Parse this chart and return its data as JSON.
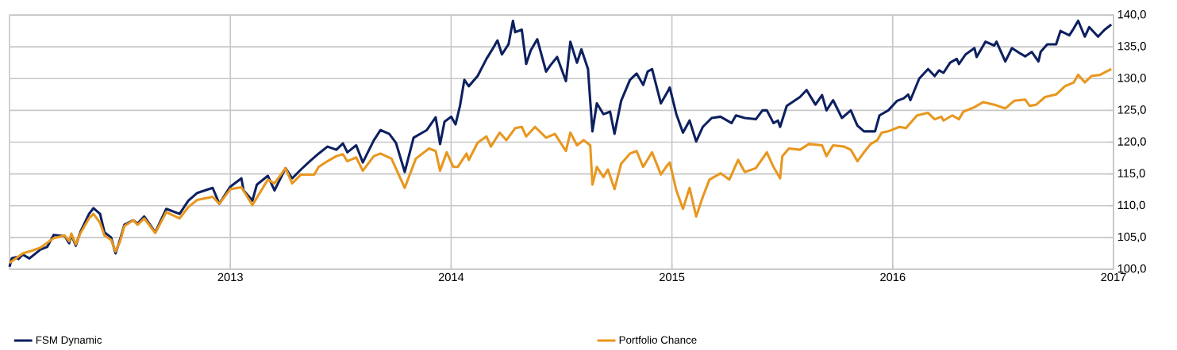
{
  "chart_data": {
    "type": "line",
    "xlim": [
      2012,
      2017
    ],
    "xticks": [
      2013,
      2014,
      2015,
      2016,
      2017
    ],
    "ylim": [
      100,
      140
    ],
    "yticks": [
      {
        "value": 100,
        "label": "100,0"
      },
      {
        "value": 105,
        "label": "105,0"
      },
      {
        "value": 110,
        "label": "110,0"
      },
      {
        "value": 115,
        "label": "115,0"
      },
      {
        "value": 120,
        "label": "120,0"
      },
      {
        "value": 125,
        "label": "125,0"
      },
      {
        "value": 130,
        "label": "130,0"
      },
      {
        "value": 135,
        "label": "135,0"
      },
      {
        "value": 140,
        "label": "140,0"
      }
    ],
    "grid": true,
    "legend": "bottom",
    "marker": "none",
    "line_style": "solid",
    "series": [
      {
        "name": "FSM Dynamic",
        "color": "#0d2060",
        "x": [
          2012.0,
          2012.01,
          2012.03,
          2012.04,
          2012.06,
          2012.09,
          2012.14,
          2012.17,
          2012.2,
          2012.25,
          2012.27,
          2012.28,
          2012.3,
          2012.32,
          2012.36,
          2012.38,
          2012.41,
          2012.43,
          2012.46,
          2012.48,
          2012.5,
          2012.52,
          2012.56,
          2012.58,
          2012.61,
          2012.66,
          2012.71,
          2012.77,
          2012.81,
          2012.85,
          2012.92,
          2012.95,
          2013.0,
          2013.05,
          2013.06,
          2013.1,
          2013.12,
          2013.17,
          2013.2,
          2013.25,
          2013.28,
          2013.32,
          2013.36,
          2013.4,
          2013.44,
          2013.48,
          2013.51,
          2013.53,
          2013.57,
          2013.6,
          2013.65,
          2013.68,
          2013.72,
          2013.75,
          2013.79,
          2013.83,
          2013.89,
          2013.93,
          2013.95,
          2013.97,
          2014.0,
          2014.02,
          2014.04,
          2014.06,
          2014.08,
          2014.12,
          2014.16,
          2014.19,
          2014.21,
          2014.23,
          2014.26,
          2014.28,
          2014.29,
          2014.32,
          2014.34,
          2014.36,
          2014.39,
          2014.43,
          2014.45,
          2014.48,
          2014.52,
          2014.54,
          2014.57,
          2014.59,
          2014.62,
          2014.63,
          2014.64,
          2014.66,
          2014.69,
          2014.72,
          2014.74,
          2014.77,
          2014.81,
          2014.84,
          2014.87,
          2014.89,
          2014.91,
          2014.95,
          2014.98,
          2014.99,
          2015.02,
          2015.05,
          2015.08,
          2015.11,
          2015.14,
          2015.18,
          2015.22,
          2015.27,
          2015.29,
          2015.33,
          2015.38,
          2015.41,
          2015.43,
          2015.46,
          2015.48,
          2015.49,
          2015.52,
          2015.58,
          2015.61,
          2015.65,
          2015.68,
          2015.7,
          2015.73,
          2015.77,
          2015.81,
          2015.84,
          2015.87,
          2015.92,
          2015.94,
          2015.98,
          2016.02,
          2016.05,
          2016.07,
          2016.08,
          2016.12,
          2016.16,
          2016.19,
          2016.21,
          2016.23,
          2016.26,
          2016.29,
          2016.3,
          2016.33,
          2016.37,
          2016.38,
          2016.42,
          2016.46,
          2016.47,
          2016.51,
          2016.54,
          2016.58,
          2016.6,
          2016.63,
          2016.66,
          2016.67,
          2016.7,
          2016.74,
          2016.76,
          2016.8,
          2016.82,
          2016.84,
          2016.87,
          2016.89,
          2016.93,
          2016.96,
          2016.99
        ],
        "values": [
          100.4,
          101.7,
          101.9,
          101.6,
          102.3,
          101.7,
          103.1,
          103.5,
          105.4,
          105.2,
          104.1,
          105.4,
          103.7,
          105.8,
          108.7,
          109.6,
          108.7,
          105.8,
          105.0,
          102.5,
          104.6,
          107.0,
          107.7,
          107.2,
          108.3,
          105.8,
          109.5,
          108.7,
          110.8,
          112.0,
          112.8,
          110.3,
          113.0,
          114.3,
          112.4,
          110.8,
          113.3,
          114.7,
          112.4,
          115.9,
          114.3,
          115.7,
          117.0,
          118.2,
          119.3,
          118.8,
          119.8,
          118.4,
          119.5,
          116.8,
          120.3,
          121.9,
          121.3,
          119.9,
          115.3,
          120.7,
          121.9,
          123.9,
          119.7,
          123.2,
          124.0,
          122.8,
          125.7,
          129.8,
          128.8,
          130.4,
          133.1,
          134.8,
          136.0,
          133.8,
          135.4,
          139.1,
          137.3,
          137.7,
          132.3,
          134.4,
          136.2,
          131.1,
          132.1,
          133.4,
          129.6,
          135.8,
          132.5,
          134.6,
          131.5,
          126.5,
          121.7,
          126.1,
          124.4,
          124.8,
          121.3,
          126.5,
          129.8,
          130.8,
          129.0,
          131.1,
          131.5,
          126.1,
          127.9,
          128.6,
          124.4,
          121.5,
          123.4,
          120.1,
          122.4,
          123.8,
          124.0,
          123.0,
          124.2,
          123.8,
          123.6,
          125.0,
          125.0,
          123.0,
          123.4,
          122.4,
          125.7,
          127.1,
          128.2,
          125.9,
          127.4,
          125.0,
          126.6,
          123.8,
          125.0,
          122.6,
          121.7,
          121.7,
          124.2,
          125.0,
          126.5,
          126.9,
          127.5,
          126.6,
          130.0,
          131.5,
          130.4,
          131.3,
          130.9,
          132.5,
          133.1,
          132.3,
          133.8,
          134.8,
          133.4,
          135.8,
          135.2,
          135.8,
          132.7,
          134.8,
          133.9,
          133.5,
          134.2,
          132.7,
          134.2,
          135.4,
          135.4,
          137.5,
          136.8,
          137.9,
          139.1,
          136.6,
          138.1,
          136.6,
          137.7,
          138.5
        ]
      },
      {
        "name": "Portfolio Chance",
        "color": "#e8971f",
        "x": [
          2012.0,
          2012.06,
          2012.1,
          2012.14,
          2012.2,
          2012.25,
          2012.27,
          2012.28,
          2012.3,
          2012.32,
          2012.36,
          2012.38,
          2012.41,
          2012.43,
          2012.46,
          2012.48,
          2012.5,
          2012.52,
          2012.56,
          2012.58,
          2012.61,
          2012.66,
          2012.71,
          2012.77,
          2012.81,
          2012.85,
          2012.92,
          2012.95,
          2013.0,
          2013.05,
          2013.1,
          2013.17,
          2013.2,
          2013.25,
          2013.28,
          2013.32,
          2013.38,
          2013.4,
          2013.44,
          2013.48,
          2013.51,
          2013.53,
          2013.57,
          2013.6,
          2013.65,
          2013.68,
          2013.73,
          2013.79,
          2013.84,
          2013.9,
          2013.93,
          2013.95,
          2013.98,
          2014.01,
          2014.03,
          2014.07,
          2014.08,
          2014.12,
          2014.16,
          2014.18,
          2014.22,
          2014.25,
          2014.29,
          2014.32,
          2014.34,
          2014.38,
          2014.43,
          2014.47,
          2014.52,
          2014.54,
          2014.57,
          2014.6,
          2014.63,
          2014.64,
          2014.66,
          2014.69,
          2014.71,
          2014.74,
          2014.77,
          2014.81,
          2014.84,
          2014.87,
          2014.91,
          2014.95,
          2014.98,
          2014.99,
          2015.02,
          2015.05,
          2015.08,
          2015.11,
          2015.14,
          2015.17,
          2015.22,
          2015.26,
          2015.3,
          2015.33,
          2015.38,
          2015.43,
          2015.46,
          2015.49,
          2015.5,
          2015.53,
          2015.58,
          2015.62,
          2015.68,
          2015.7,
          2015.73,
          2015.78,
          2015.81,
          2015.84,
          2015.87,
          2015.9,
          2015.93,
          2015.95,
          2015.98,
          2016.03,
          2016.06,
          2016.11,
          2016.16,
          2016.19,
          2016.22,
          2016.23,
          2016.27,
          2016.3,
          2016.32,
          2016.37,
          2016.41,
          2016.46,
          2016.51,
          2016.55,
          2016.6,
          2016.62,
          2016.65,
          2016.69,
          2016.74,
          2016.78,
          2016.82,
          2016.84,
          2016.87,
          2016.9,
          2016.94,
          2016.99
        ],
        "values": [
          101.0,
          102.5,
          102.9,
          103.4,
          104.9,
          105.3,
          104.4,
          105.6,
          103.9,
          105.6,
          108.0,
          108.7,
          107.3,
          105.3,
          104.6,
          102.8,
          104.3,
          106.8,
          107.7,
          107.0,
          108.0,
          105.7,
          109.0,
          108.0,
          109.8,
          110.9,
          111.4,
          110.3,
          112.6,
          112.9,
          110.1,
          114.1,
          113.5,
          115.9,
          113.5,
          114.9,
          114.9,
          116.1,
          117.0,
          117.8,
          118.1,
          117.0,
          117.6,
          115.5,
          117.8,
          118.2,
          117.4,
          112.8,
          117.4,
          119.0,
          118.6,
          115.5,
          118.4,
          116.1,
          116.1,
          118.2,
          117.2,
          119.9,
          120.9,
          119.3,
          121.5,
          120.3,
          122.2,
          122.4,
          120.9,
          122.4,
          120.7,
          121.3,
          118.6,
          121.5,
          119.5,
          120.3,
          119.5,
          113.3,
          116.1,
          114.5,
          115.7,
          112.6,
          116.6,
          118.2,
          118.6,
          116.1,
          118.4,
          114.9,
          116.4,
          116.8,
          112.4,
          109.5,
          112.8,
          108.3,
          111.4,
          114.1,
          115.1,
          114.1,
          117.2,
          115.3,
          115.9,
          118.4,
          116.1,
          114.3,
          117.8,
          119.0,
          118.8,
          119.7,
          119.5,
          117.8,
          119.5,
          119.3,
          118.8,
          117.0,
          118.4,
          119.7,
          120.3,
          121.5,
          121.7,
          122.4,
          122.2,
          124.2,
          124.6,
          123.6,
          124.0,
          123.4,
          124.2,
          123.6,
          124.8,
          125.5,
          126.3,
          125.9,
          125.3,
          126.5,
          126.7,
          125.7,
          125.9,
          127.1,
          127.5,
          128.8,
          129.4,
          130.6,
          129.4,
          130.4,
          130.6,
          131.5
        ]
      }
    ]
  }
}
